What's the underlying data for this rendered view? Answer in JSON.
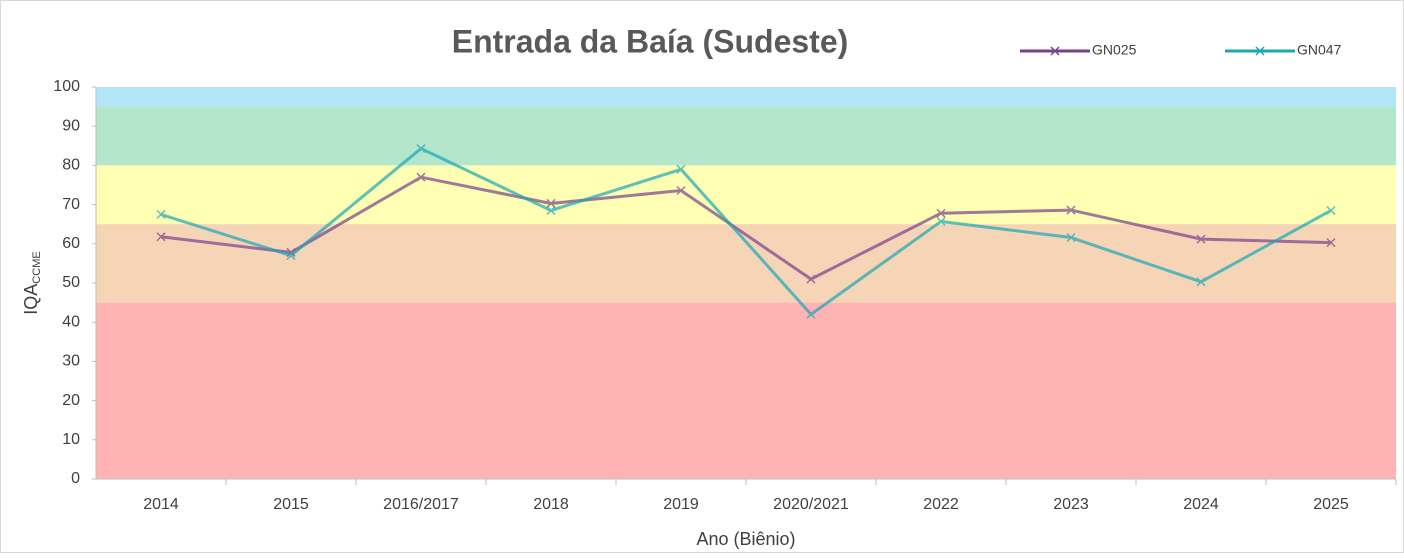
{
  "chart_data": {
    "type": "line",
    "title": "Entrada da Baía (Sudeste)",
    "x_label": "Ano (Biênio)",
    "y_label": "IQA",
    "y_label_sub": "CCME",
    "categories": [
      "2014",
      "2015",
      "2016/2017",
      "2018",
      "2019",
      "2020/2021",
      "2022",
      "2023",
      "2024",
      "2025"
    ],
    "series": [
      {
        "name": "GN025",
        "color": "#7b3f8e",
        "values": [
          61.8,
          57.8,
          77,
          70.3,
          73.6,
          51,
          67.8,
          68.6,
          61.2,
          60.3
        ]
      },
      {
        "name": "GN047",
        "color": "#1aa7b8",
        "values": [
          67.5,
          57,
          84.3,
          68.5,
          79,
          42,
          65.7,
          61.6,
          50.3,
          68.5
        ]
      }
    ],
    "bands": [
      {
        "from": 95,
        "to": 100,
        "color": "#b3e5f8"
      },
      {
        "from": 80,
        "to": 95,
        "color": "#b3e6cb"
      },
      {
        "from": 65,
        "to": 80,
        "color": "#ffffb3"
      },
      {
        "from": 45,
        "to": 65,
        "color": "#f5d5b6"
      },
      {
        "from": 0,
        "to": 45,
        "color": "#ffb3b3"
      }
    ],
    "ylim": [
      0,
      100
    ],
    "yticks": [
      0,
      10,
      20,
      30,
      40,
      50,
      60,
      70,
      80,
      90,
      100
    ],
    "legend": "top-right"
  }
}
